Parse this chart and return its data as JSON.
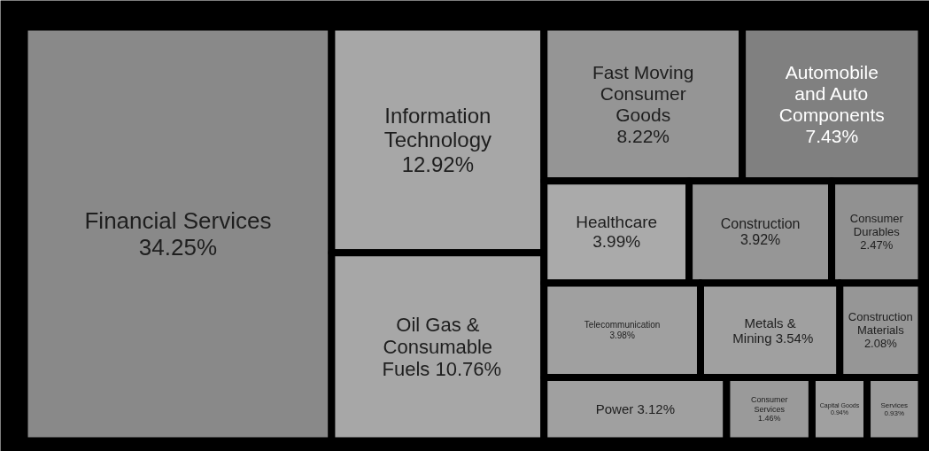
{
  "chart_data": {
    "type": "other",
    "categories": [
      "Financial Services",
      "Information Technology",
      "Oil Gas & Consumable Fuels",
      "Fast Moving Consumer Goods",
      "Automobile and Auto Components",
      "Healthcare",
      "Construction",
      "Consumer Durables",
      "Construction Materials",
      "Metals & Mining",
      "Telecommunication",
      "Power",
      "Consumer Services",
      "Capital Goods",
      "Services"
    ],
    "values": [
      34.25,
      12.92,
      10.76,
      8.22,
      7.43,
      3.99,
      3.92,
      2.47,
      2.08,
      3.54,
      3.98,
      3.12,
      1.46,
      0.94,
      0.93
    ],
    "value_labels": [
      "34.25%",
      "12.92%",
      "10.76%",
      "8.22%",
      "7.43%",
      "3.99%",
      "3.92%",
      "2.47%",
      "2.08%",
      "3.54%",
      "3.98%",
      "3.12%",
      "1.46%",
      "0.94%",
      "0.93%"
    ],
    "colors": [
      "#898989",
      "#a7a7a7",
      "#a7a7a7",
      "#959595",
      "#808080",
      "#aaaaaa",
      "#969696",
      "#919191",
      "#969696",
      "#a0a0a0",
      "#a0a0a0",
      "#a0a0a0",
      "#9a9a9a",
      "#a0a0a0",
      "#9a9a9a"
    ],
    "data_labels": true
  }
}
